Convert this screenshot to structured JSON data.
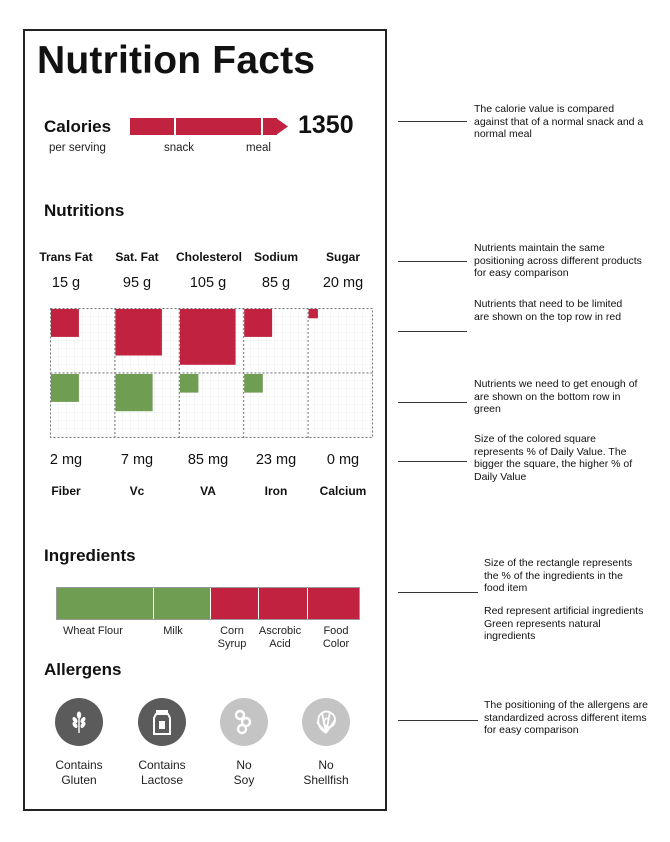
{
  "label": {
    "title": "Nutrition Facts",
    "calories": {
      "heading": "Calories",
      "value": "1350",
      "per_serving": "per serving",
      "snack": "snack",
      "meal": "meal"
    },
    "nutritions_heading": "Nutritions",
    "limit_nutrients": [
      {
        "name": "Trans Fat",
        "amount": "15 g",
        "dv_fraction": 0.45
      },
      {
        "name": "Sat. Fat",
        "amount": "95 g",
        "dv_fraction": 0.75
      },
      {
        "name": "Cholesterol",
        "amount": "105 g",
        "dv_fraction": 0.9
      },
      {
        "name": "Sodium",
        "amount": "85 g",
        "dv_fraction": 0.45
      },
      {
        "name": "Sugar",
        "amount": "20 mg",
        "dv_fraction": 0.15
      }
    ],
    "good_nutrients": [
      {
        "name": "Fiber",
        "amount": "2 mg",
        "dv_fraction": 0.45
      },
      {
        "name": "Vc",
        "amount": "7 mg",
        "dv_fraction": 0.6
      },
      {
        "name": "VA",
        "amount": "85 mg",
        "dv_fraction": 0.3
      },
      {
        "name": "Iron",
        "amount": "23 mg",
        "dv_fraction": 0.3
      },
      {
        "name": "Calcium",
        "amount": "0 mg",
        "dv_fraction": 0
      }
    ],
    "ingredients_heading": "Ingredients",
    "ingredients": [
      {
        "name": "Wheat Flour",
        "share": 0.32,
        "type": "natural"
      },
      {
        "name": "Milk",
        "share": 0.19,
        "type": "natural"
      },
      {
        "name": "Corn Syrup",
        "share": 0.16,
        "type": "artificial"
      },
      {
        "name": "Ascrobic Acid",
        "share": 0.16,
        "type": "artificial"
      },
      {
        "name": "Food Color",
        "share": 0.17,
        "type": "artificial"
      }
    ],
    "allergens_heading": "Allergens",
    "allergens": [
      {
        "status": "Contains",
        "name": "Gluten",
        "icon": "wheat-icon",
        "present": true
      },
      {
        "status": "Contains",
        "name": "Lactose",
        "icon": "milk-carton-icon",
        "present": true
      },
      {
        "status": "No",
        "name": "Soy",
        "icon": "soybean-icon",
        "present": false
      },
      {
        "status": "No",
        "name": "Shellfish",
        "icon": "shell-icon",
        "present": false
      }
    ]
  },
  "notes": [
    "The calorie value is compared against that of a normal snack and a normal meal",
    "Nutrients maintain the same positioning across different products for easy comparison",
    "Nutrients that need to be limited are shown on the top row in red",
    "Nutrients we need to get enough of are shown on the bottom row in green",
    "Size of the colored square represents % of Daily Value. The bigger the square, the higher % of Daily Value",
    "Size of the rectangle represents the % of the ingredients in the food item",
    "Red represent artificial ingredients Green represents natural ingredients",
    "The positioning of the allergens are standardized across different items for easy comparison"
  ],
  "colors": {
    "red": "#c0223f",
    "green": "#6f9d51",
    "dark_circle": "#5b5b5b",
    "light_circle": "#c4c4c4"
  }
}
